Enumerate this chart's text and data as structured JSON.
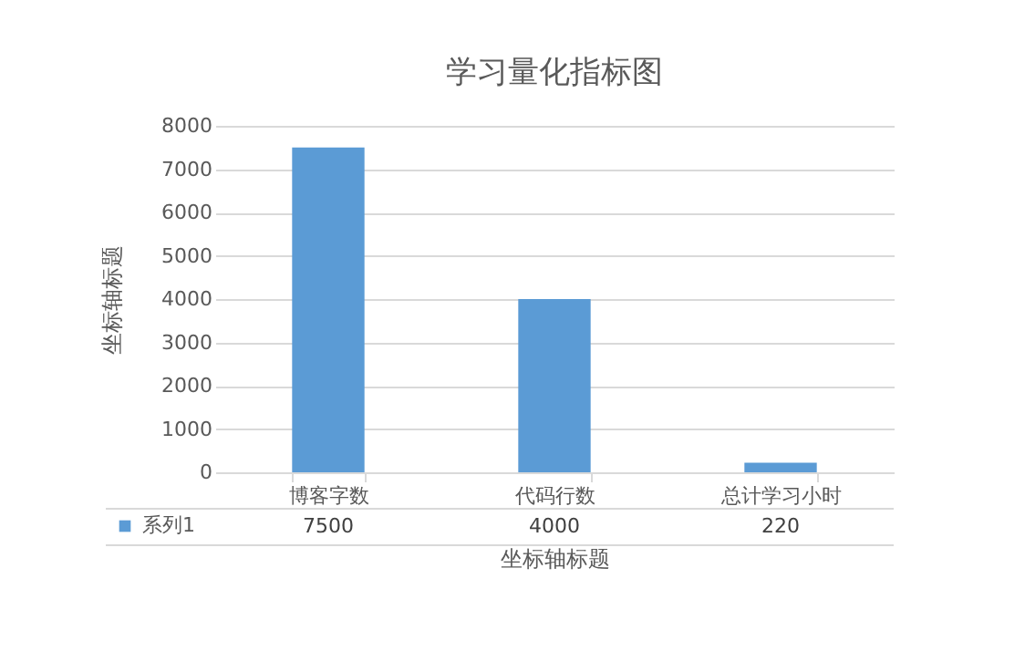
{
  "chart_data": {
    "type": "bar",
    "title": "学习量化指标图",
    "xlabel": "坐标轴标题",
    "ylabel": "坐标轴标题",
    "categories": [
      "博客字数",
      "代码行数",
      "总计学习小时"
    ],
    "series": [
      {
        "name": "系列1",
        "color": "#5b9bd5",
        "values": [
          7500,
          4000,
          220
        ]
      }
    ],
    "ylim": [
      0,
      8000
    ],
    "yticks": [
      0,
      1000,
      2000,
      3000,
      4000,
      5000,
      6000,
      7000,
      8000
    ],
    "grid": "y",
    "legend": "bottom left",
    "data_labels": true
  }
}
